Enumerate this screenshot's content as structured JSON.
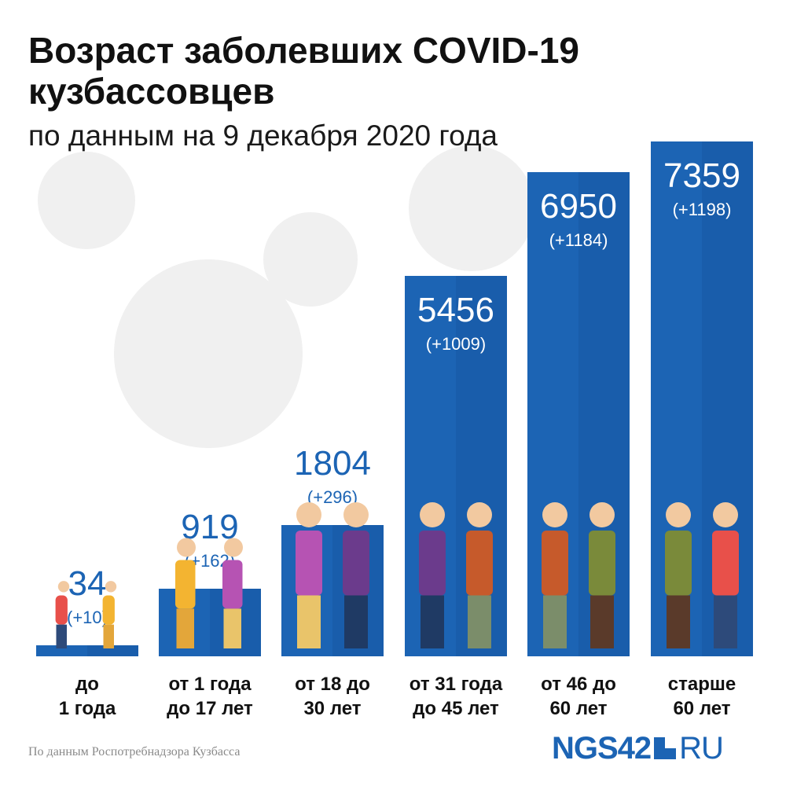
{
  "title": "Возраст заболевших COVID-19 кузбассовцев",
  "subtitle": "по данным на 9 декабря 2020 года",
  "source": "По данным Роспотребнадзора Кузбасса",
  "logo": {
    "main": "NGS42",
    "suffix": "RU"
  },
  "colors": {
    "bar": "#1c64b4",
    "bar_dark": "#14509a",
    "value_outside": "#1c64b4",
    "value_inside": "#ffffff",
    "bg_virus": "#eeeeee"
  },
  "chart_data": {
    "type": "bar",
    "title": "Возраст заболевших COVID-19 кузбассовцев",
    "subtitle": "по данным на 9 декабря 2020 года",
    "categories": [
      [
        "до",
        "1 года"
      ],
      [
        "от 1 года",
        "до 17 лет"
      ],
      [
        "от 18 до",
        "30 лет"
      ],
      [
        "от 31 года",
        "до 45 лет"
      ],
      [
        "от 46 до",
        "60 лет"
      ],
      [
        "старше",
        "60 лет"
      ]
    ],
    "values": [
      34,
      919,
      1804,
      5456,
      6950,
      7359
    ],
    "delta_labels": [
      "(+10)",
      "(+162)",
      "(+296)",
      "(+1009)",
      "(+1184)",
      "(+1198)"
    ],
    "ylim": [
      0,
      7359
    ],
    "grid": false,
    "legend": "none"
  }
}
